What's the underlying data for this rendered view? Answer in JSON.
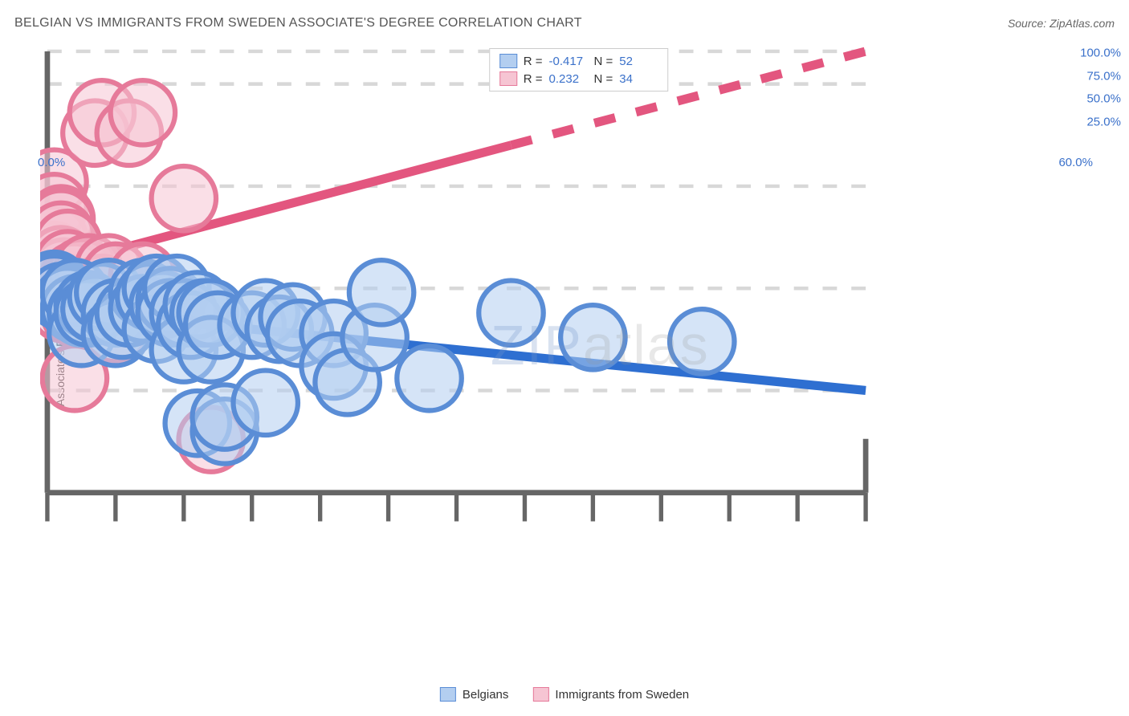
{
  "header": {
    "title": "BELGIAN VS IMMIGRANTS FROM SWEDEN ASSOCIATE'S DEGREE CORRELATION CHART",
    "source": "Source: ZipAtlas.com"
  },
  "watermark": {
    "zip": "ZIP",
    "atlas": "atlas"
  },
  "chart": {
    "type": "scatter",
    "y_axis_label": "Associate's Degree",
    "background_color": "#ffffff",
    "grid_color": "#d8d8d8",
    "axis_color": "#666666",
    "xlim": [
      0,
      60
    ],
    "ylim": [
      0,
      108
    ],
    "x_ticks": [
      0,
      5,
      10,
      15,
      20,
      25,
      30,
      35,
      40,
      45,
      50,
      55,
      60
    ],
    "x_tick_labels": {
      "0": "0.0%",
      "60": "60.0%"
    },
    "y_ticks": [
      25,
      50,
      75,
      100,
      108
    ],
    "y_tick_labels": {
      "25": "25.0%",
      "50": "50.0%",
      "75": "75.0%",
      "100": "100.0%"
    },
    "marker_radius": 9,
    "marker_stroke_width": 1.4,
    "line_width": 2.5,
    "stats": [
      {
        "series": "blue",
        "R_label": "R =",
        "R": "-0.417",
        "N_label": "N =",
        "N": "52"
      },
      {
        "series": "pink",
        "R_label": "R =",
        "R": "0.232",
        "N_label": "N =",
        "N": "34"
      }
    ],
    "legend": [
      {
        "series": "blue",
        "label": "Belgians"
      },
      {
        "series": "pink",
        "label": "Immigrants from Sweden"
      }
    ],
    "series": {
      "blue": {
        "fill": "#b3cef0",
        "stroke": "#5a8dd6",
        "fill_opacity": 0.55,
        "line_color": "#2e6fd1",
        "trend": {
          "x1": 0,
          "y1": 45,
          "x2": 60,
          "y2": 25,
          "dash_from_x": null
        },
        "points": [
          [
            0.5,
            51
          ],
          [
            0.5,
            50
          ],
          [
            1,
            48
          ],
          [
            1.5,
            47
          ],
          [
            2,
            45
          ],
          [
            2,
            49
          ],
          [
            2.5,
            44
          ],
          [
            2.5,
            39
          ],
          [
            3,
            46
          ],
          [
            3,
            44
          ],
          [
            3.5,
            45
          ],
          [
            4,
            48
          ],
          [
            4.5,
            49
          ],
          [
            5,
            44
          ],
          [
            5,
            39
          ],
          [
            5.5,
            41
          ],
          [
            6,
            44
          ],
          [
            7,
            49
          ],
          [
            7,
            45
          ],
          [
            7.5,
            48
          ],
          [
            8,
            50
          ],
          [
            8,
            40
          ],
          [
            8.5,
            46
          ],
          [
            9,
            47
          ],
          [
            9,
            44
          ],
          [
            9.5,
            50
          ],
          [
            10,
            44
          ],
          [
            10,
            35
          ],
          [
            10.5,
            41
          ],
          [
            11,
            46
          ],
          [
            11.5,
            44
          ],
          [
            11,
            17
          ],
          [
            12,
            44
          ],
          [
            12,
            35
          ],
          [
            12.5,
            41
          ],
          [
            13,
            15
          ],
          [
            13,
            18.5
          ],
          [
            15,
            41
          ],
          [
            16,
            22
          ],
          [
            16,
            44
          ],
          [
            17,
            40
          ],
          [
            18,
            43
          ],
          [
            18.5,
            39
          ],
          [
            21,
            39
          ],
          [
            21,
            31
          ],
          [
            22,
            27
          ],
          [
            24,
            38
          ],
          [
            24.5,
            49
          ],
          [
            28,
            28
          ],
          [
            34,
            44
          ],
          [
            40,
            38
          ],
          [
            48,
            37
          ]
        ]
      },
      "pink": {
        "fill": "#f6c5d3",
        "stroke": "#e67a9a",
        "fill_opacity": 0.55,
        "line_color": "#e3567f",
        "trend": {
          "x1": 0,
          "y1": 55,
          "x2": 60,
          "y2": 108,
          "dash_from_x": 34
        },
        "points": [
          [
            0.5,
            76
          ],
          [
            0.5,
            70
          ],
          [
            0.5,
            62
          ],
          [
            0.5,
            58
          ],
          [
            1,
            67
          ],
          [
            1,
            66
          ],
          [
            1,
            63
          ],
          [
            1,
            57
          ],
          [
            1,
            50
          ],
          [
            1.2,
            54
          ],
          [
            1.2,
            45
          ],
          [
            1.5,
            61
          ],
          [
            1.5,
            56
          ],
          [
            1.5,
            50
          ],
          [
            1.8,
            49
          ],
          [
            2,
            53
          ],
          [
            2,
            46
          ],
          [
            2,
            44
          ],
          [
            2,
            28
          ],
          [
            2.5,
            47
          ],
          [
            2.5,
            54
          ],
          [
            3,
            55
          ],
          [
            3.5,
            88
          ],
          [
            3.5,
            45
          ],
          [
            4,
            93
          ],
          [
            4,
            50
          ],
          [
            4.5,
            55
          ],
          [
            5,
            53
          ],
          [
            5,
            40
          ],
          [
            6,
            88
          ],
          [
            7,
            93
          ],
          [
            7,
            53
          ],
          [
            10,
            72
          ],
          [
            12,
            13
          ]
        ]
      }
    }
  }
}
